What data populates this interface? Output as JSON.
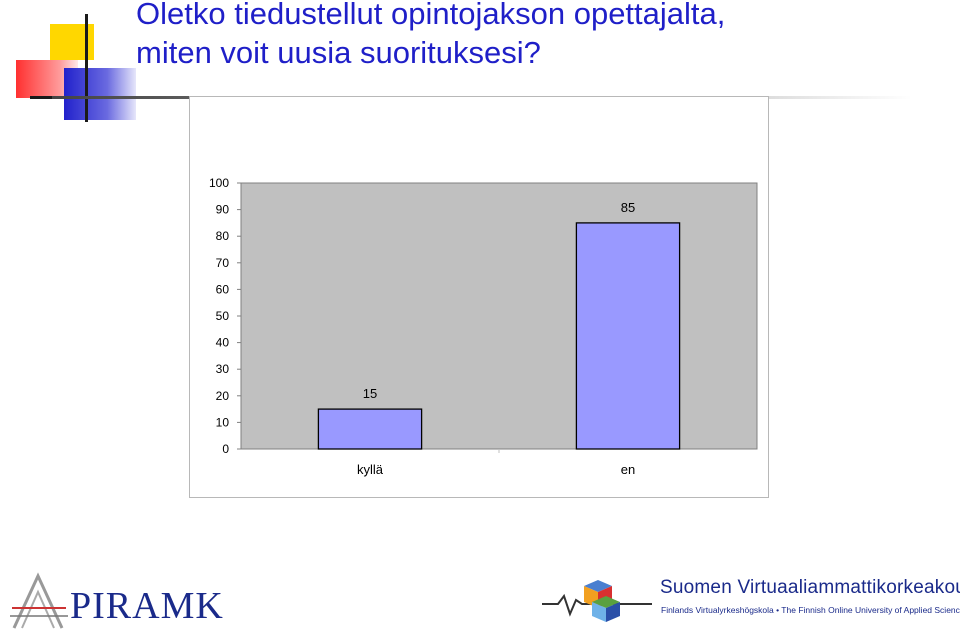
{
  "slide": {
    "title_line1": "Oletko tiedustellut opintojakson opettajalta,",
    "title_line2": "miten voit uusia suorituksesi?",
    "accent_color": "#1f1fc8"
  },
  "chart_data": {
    "type": "bar",
    "categories": [
      "kyllä",
      "en"
    ],
    "values": [
      15,
      85
    ],
    "ylim": [
      0,
      100
    ],
    "yticks": [
      0,
      10,
      20,
      30,
      40,
      50,
      60,
      70,
      80,
      90,
      100
    ],
    "data_labels": [
      "15",
      "85"
    ],
    "bar_color": "#9999ff",
    "plot_background": "#c0c0c0",
    "grid": false,
    "legend": false
  },
  "logos": {
    "left": {
      "name": "PIRAMK"
    },
    "right": {
      "name": "Suomen Virtuaaliammattikorkeakoulu",
      "subtitle": "Finlands Virtualyrkeshögskola • The Finnish Online University of Applied Sciences"
    }
  }
}
